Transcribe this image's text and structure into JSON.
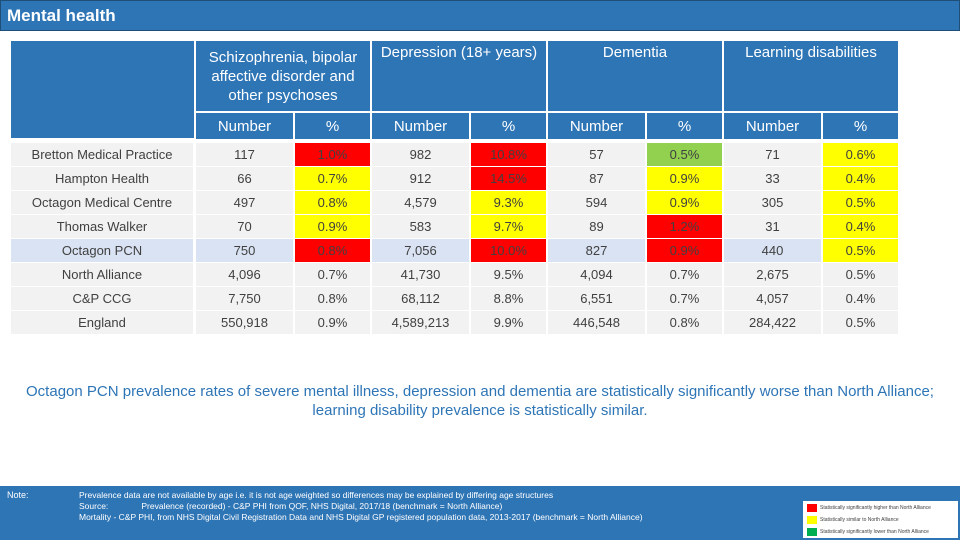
{
  "title": "Mental health",
  "groups": [
    {
      "label": "Schizophrenia, bipolar affective disorder and other psychoses"
    },
    {
      "label": "Depression (18+ years)"
    },
    {
      "label": "Dementia"
    },
    {
      "label": "Learning disabilities"
    }
  ],
  "subheaders": {
    "number": "Number",
    "percent": "%"
  },
  "rows": [
    {
      "name": "Bretton Medical Practice",
      "cells": [
        "117",
        "1.0%",
        "982",
        "10.8%",
        "57",
        "0.5%",
        "71",
        "0.6%"
      ],
      "status": [
        "",
        "red",
        "",
        "red",
        "",
        "green",
        "",
        "yellow"
      ]
    },
    {
      "name": "Hampton Health",
      "cells": [
        "66",
        "0.7%",
        "912",
        "14.5%",
        "87",
        "0.9%",
        "33",
        "0.4%"
      ],
      "status": [
        "",
        "yellow",
        "",
        "red",
        "",
        "yellow",
        "",
        "yellow"
      ]
    },
    {
      "name": "Octagon Medical Centre",
      "cells": [
        "497",
        "0.8%",
        "4,579",
        "9.3%",
        "594",
        "0.9%",
        "305",
        "0.5%"
      ],
      "status": [
        "",
        "yellow",
        "",
        "yellow",
        "",
        "yellow",
        "",
        "yellow"
      ]
    },
    {
      "name": "Thomas Walker",
      "cells": [
        "70",
        "0.9%",
        "583",
        "9.7%",
        "89",
        "1.2%",
        "31",
        "0.4%"
      ],
      "status": [
        "",
        "yellow",
        "",
        "yellow",
        "",
        "red",
        "",
        "yellow"
      ]
    },
    {
      "name": "Octagon PCN",
      "cells": [
        "750",
        "0.8%",
        "7,056",
        "10.0%",
        "827",
        "0.9%",
        "440",
        "0.5%"
      ],
      "status": [
        "",
        "red",
        "",
        "red",
        "",
        "red",
        "",
        "yellow"
      ]
    },
    {
      "name": "North Alliance",
      "cells": [
        "4,096",
        "0.7%",
        "41,730",
        "9.5%",
        "4,094",
        "0.7%",
        "2,675",
        "0.5%"
      ],
      "status": [
        "",
        "",
        "",
        "",
        "",
        "",
        "",
        ""
      ]
    },
    {
      "name": "C&P CCG",
      "cells": [
        "7,750",
        "0.8%",
        "68,112",
        "8.8%",
        "6,551",
        "0.7%",
        "4,057",
        "0.4%"
      ],
      "status": [
        "",
        "",
        "",
        "",
        "",
        "",
        "",
        ""
      ]
    },
    {
      "name": "England",
      "cells": [
        "550,918",
        "0.9%",
        "4,589,213",
        "9.9%",
        "446,548",
        "0.8%",
        "284,422",
        "0.5%"
      ],
      "status": [
        "",
        "",
        "",
        "",
        "",
        "",
        "",
        ""
      ]
    }
  ],
  "summary": "Octagon PCN prevalence rates of severe mental illness, depression and dementia are statistically significantly worse than North Alliance; learning disability prevalence is statistically similar.",
  "notes": {
    "label": "Note:",
    "line1": "Prevalence data are not available by age i.e. it is not age weighted so differences may be explained by differing age structures",
    "line2": "Source:              Prevalence (recorded) - C&P PHI from QOF, NHS Digital, 2017/18 (benchmark = North Alliance)",
    "line3": "Mortality - C&P PHI, from NHS Digital Civil Registration Data and NHS Digital GP registered population data, 2013-2017 (benchmark = North Alliance)"
  },
  "legend": [
    {
      "label": "Statistically significantly higher than North Alliance",
      "color": "#ff0000"
    },
    {
      "label": "Statistically similar to North Alliance",
      "color": "#ffff00"
    },
    {
      "label": "Statistically significantly lower than North Alliance",
      "color": "#00b050"
    }
  ],
  "colors": {
    "header": "#2e75b6",
    "red": "#ff0000",
    "yellow": "#ffff00",
    "green": "#92d050",
    "pcn_row": "#dae3f3",
    "row": "#f2f2f2"
  }
}
